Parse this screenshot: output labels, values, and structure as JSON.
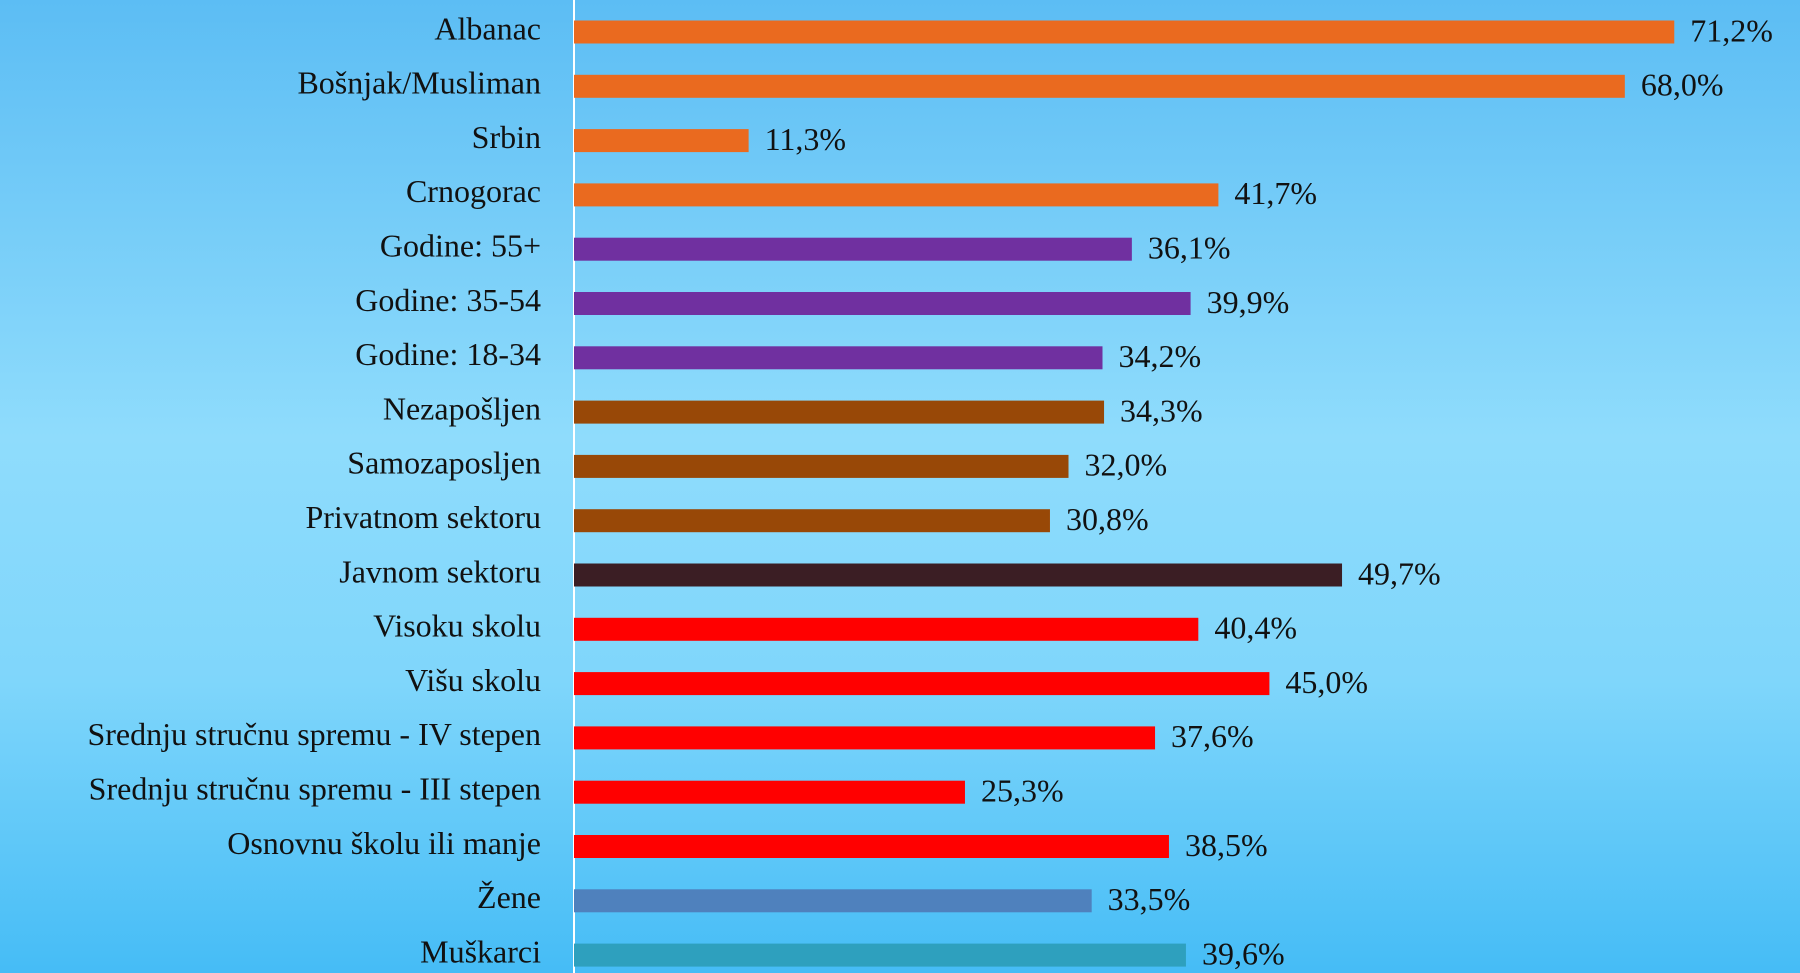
{
  "chart_data": {
    "type": "barh",
    "categories": [
      "Albanac",
      "Bošnjak/Musliman",
      "Srbin",
      "Crnogorac",
      "Godine: 55+",
      "Godine: 35-54",
      "Godine: 18-34",
      "Nezapošljen",
      "Samozaposljen",
      "Privatnom sektoru",
      "Javnom sektoru",
      "Visoku skolu",
      "Višu skolu",
      "Srednju stručnu spremu - IV stepen",
      "Srednju stručnu spremu - III stepen",
      "Osnovnu školu ili manje",
      "Žene",
      "Muškarci"
    ],
    "values": [
      71.2,
      68.0,
      11.3,
      41.7,
      36.1,
      39.9,
      34.2,
      34.3,
      32.0,
      30.8,
      49.7,
      40.4,
      45.0,
      37.6,
      25.3,
      38.5,
      33.5,
      39.6
    ],
    "value_labels": [
      "71,2%",
      "68,0%",
      "11,3%",
      "41,7%",
      "36,1%",
      "39,9%",
      "34,2%",
      "34,3%",
      "32,0%",
      "30,8%",
      "49,7%",
      "40,4%",
      "45,0%",
      "37,6%",
      "25,3%",
      "38,5%",
      "33,5%",
      "39,6%"
    ],
    "colors": [
      "#ea6a1f",
      "#ea6a1f",
      "#ea6a1f",
      "#ea6a1f",
      "#7030a0",
      "#7030a0",
      "#7030a0",
      "#984807",
      "#984807",
      "#984807",
      "#3b1e24",
      "#ff0000",
      "#ff0000",
      "#ff0000",
      "#ff0000",
      "#ff0000",
      "#4f81bd",
      "#2ea0be"
    ],
    "xlim": [
      0,
      75
    ]
  }
}
